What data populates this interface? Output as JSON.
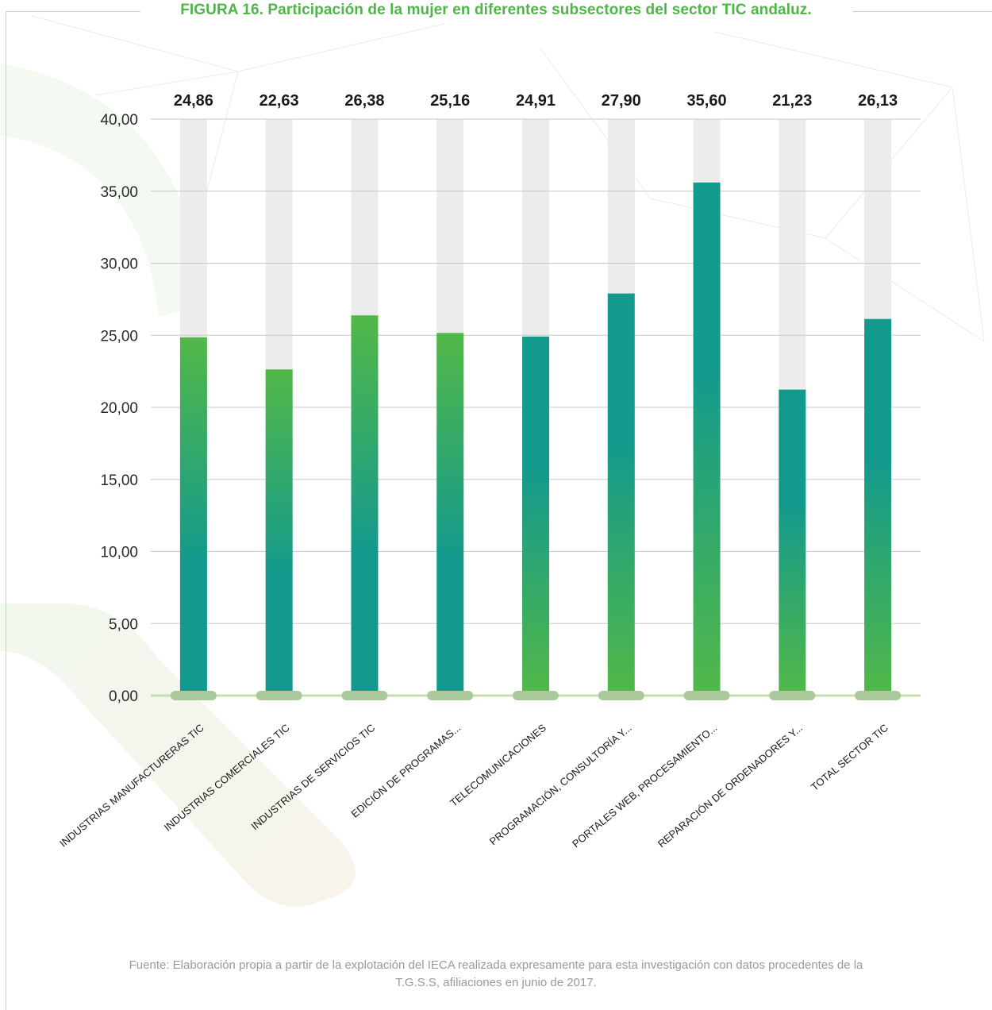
{
  "figure": {
    "title": "FIGURA 16. Participación de la mujer en diferentes subsectores del sector TIC andaluz.",
    "source_line1": "Fuente: Elaboración propia a partir de la explotación del IECA realizada expresamente para esta investigación con datos procedentes de la",
    "source_line2": "T.G.S.S, afiliaciones en junio de 2017."
  },
  "colors": {
    "title": "#4fb548",
    "teal": "#149a8c",
    "green": "#52b848",
    "track": "#ececec",
    "baseline": "#c5deae",
    "baseline_pill": "#a9c99a",
    "grid": "#c8c8c8"
  },
  "chart_data": {
    "type": "bar",
    "title": "",
    "xlabel": "",
    "ylabel": "",
    "ylim": [
      0,
      40
    ],
    "yticks": [
      "0,00",
      "5,00",
      "10,00",
      "15,00",
      "20,00",
      "25,00",
      "30,00",
      "35,00",
      "40,00"
    ],
    "grid": true,
    "categories": [
      "INDUSTRIAS MANUFACTURERAS TIC",
      "INDUSTRIAS COMERCIALES TIC",
      "INDUSTRIAS DE SERVICIOS TIC",
      "EDICIÓN DE PROGRAMAS...",
      "TELECOMUNICACIONES",
      "PROGRAMACIÓN, CONSULTORÍA Y...",
      "PORTALES WEB, PROCESAMIENTO...",
      "REPARACIÓN DE ORDENADORES Y...",
      "TOTAL SECTOR TIC"
    ],
    "values": [
      24.86,
      22.63,
      26.38,
      25.16,
      24.91,
      27.9,
      35.6,
      21.23,
      26.13
    ],
    "value_labels": [
      "24,86",
      "22,63",
      "26,38",
      "25,16",
      "24,91",
      "27,90",
      "35,60",
      "21,23",
      "26,13"
    ],
    "bar_fill": [
      "green-top",
      "green-top",
      "green-top",
      "green-top",
      "green-bottom",
      "green-bottom",
      "green-bottom",
      "green-bottom",
      "green-bottom"
    ]
  }
}
